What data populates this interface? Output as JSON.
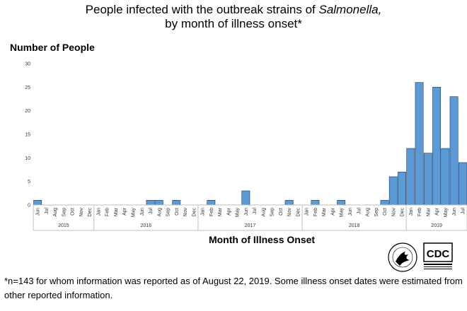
{
  "chart_data": {
    "type": "bar",
    "title_line1_prefix": "People infected with the outbreak strains of ",
    "title_line1_italic": "Salmonella,",
    "title_line2": "by month of illness onset*",
    "ylabel": "Number of People",
    "xlabel": "Month of Illness Onset",
    "ylim": [
      0,
      30
    ],
    "yticks": [
      0,
      5,
      10,
      15,
      20,
      25,
      30
    ],
    "grid": false,
    "bar_color": "#5b9bd5",
    "bar_edge_color": "#1f3864",
    "categories": [
      "Jun",
      "Jul",
      "Aug",
      "Sep",
      "Oct",
      "Nov",
      "Dec",
      "Jan",
      "Feb",
      "Mar",
      "Apr",
      "May",
      "Jun",
      "Jul",
      "Aug",
      "Sep",
      "Oct",
      "Nov",
      "Dec",
      "Jan",
      "Feb",
      "Mar",
      "Apr",
      "May",
      "Jun",
      "Jul",
      "Aug",
      "Sep",
      "Oct",
      "Nov",
      "Dec",
      "Jan",
      "Feb",
      "Mar",
      "Apr",
      "May",
      "Jun",
      "Jul",
      "Aug",
      "Sep",
      "Oct",
      "Nov",
      "Dec",
      "Jan",
      "Feb",
      "Mar",
      "Apr",
      "May",
      "Jun",
      "Jul"
    ],
    "values": [
      1,
      0,
      0,
      0,
      0,
      0,
      0,
      0,
      0,
      0,
      0,
      0,
      0,
      1,
      1,
      0,
      1,
      0,
      0,
      0,
      1,
      0,
      0,
      0,
      3,
      0,
      0,
      0,
      0,
      1,
      0,
      0,
      1,
      0,
      0,
      1,
      0,
      0,
      0,
      0,
      1,
      6,
      7,
      12,
      26,
      11,
      25,
      12,
      23,
      9
    ],
    "years": [
      {
        "label": "2015",
        "count": 7
      },
      {
        "label": "2016",
        "count": 12
      },
      {
        "label": "2017",
        "count": 12
      },
      {
        "label": "2018",
        "count": 12
      },
      {
        "label": "2019",
        "count": 7
      }
    ]
  },
  "footnote": {
    "line1": "*n=143 for whom information was reported as of August 22, 2019. Some illness onset dates were estimated from",
    "line2": "other reported information."
  },
  "logos": {
    "hhs_icon": "hhs-eagle-seal-icon",
    "cdc_text": "CDC"
  }
}
